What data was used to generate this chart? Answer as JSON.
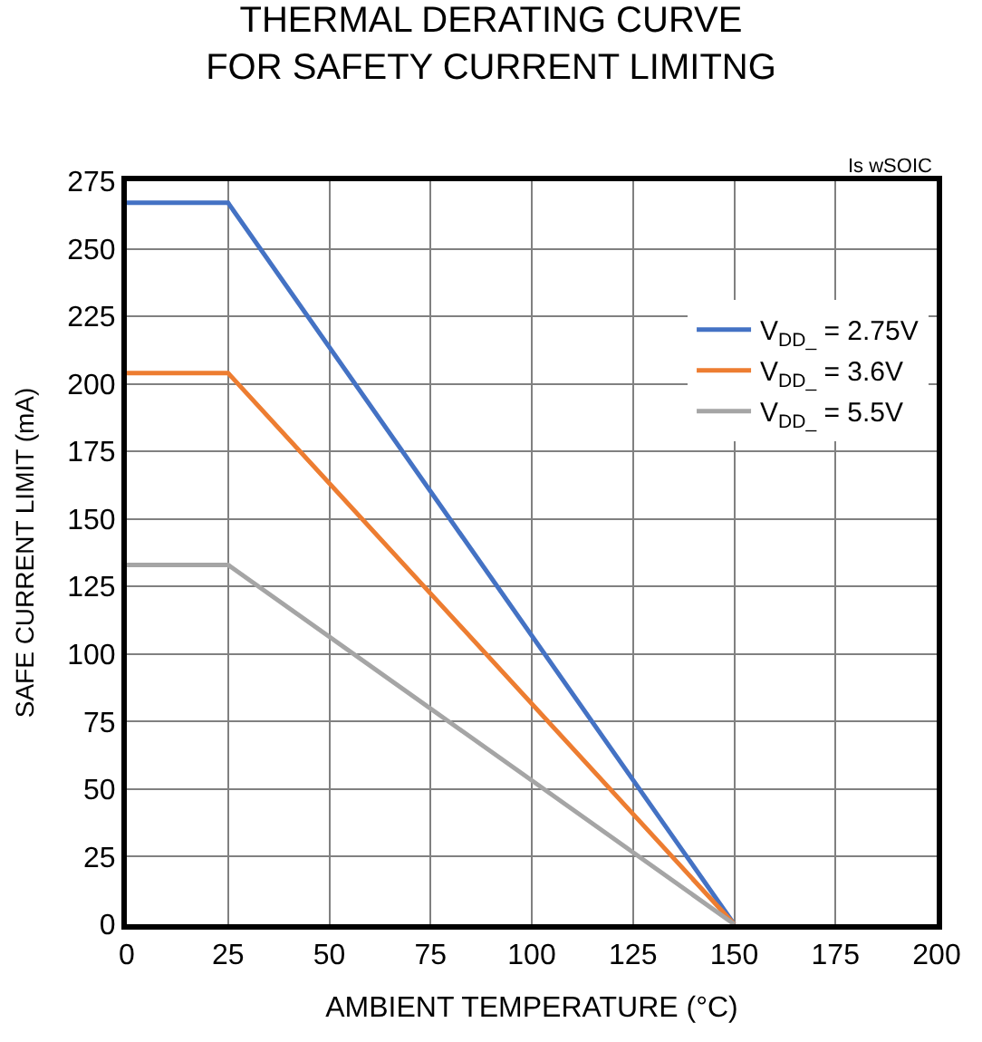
{
  "chart_data": {
    "type": "line",
    "title": "THERMAL DERATING CURVE\nFOR SAFETY CURRENT LIMITNG",
    "xlabel": "AMBIENT TEMPERATURE (°C)",
    "ylabel": "SAFE CURRENT LIMIT (mA)",
    "annotations": [
      "Is wSOIC"
    ],
    "x": [
      0,
      25,
      150
    ],
    "series": [
      {
        "name": "V$_{DD_}$ = 2.75V",
        "color": "#4472c4",
        "values": [
          267,
          267,
          0
        ]
      },
      {
        "name": "V$_{DD_}$ = 3.6V",
        "color": "#ed7d31",
        "values": [
          204,
          204,
          0
        ]
      },
      {
        "name": "V$_{DD_}$ = 5.5V",
        "color": "#a5a5a5",
        "values": [
          133,
          133,
          0
        ]
      }
    ],
    "xlim": [
      0,
      200
    ],
    "xticks": [
      0,
      25,
      50,
      75,
      100,
      125,
      150,
      175,
      200
    ],
    "ylim": [
      0,
      275
    ],
    "yticks": [
      0,
      25,
      50,
      75,
      100,
      125,
      150,
      175,
      200,
      225,
      250,
      275
    ],
    "grid": true,
    "legend": "top right",
    "line_style": "solid",
    "marker": "none"
  }
}
